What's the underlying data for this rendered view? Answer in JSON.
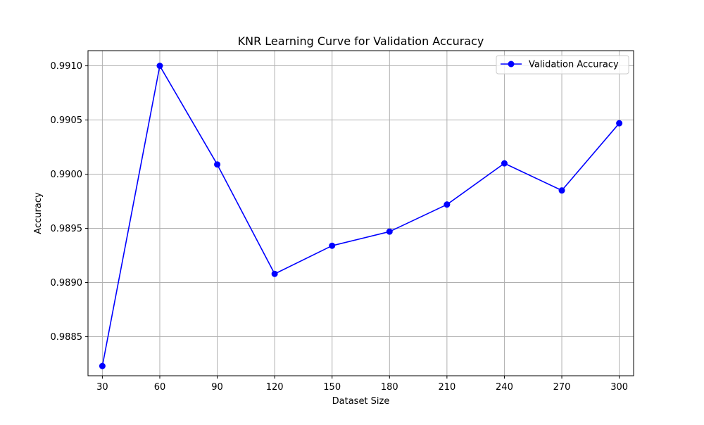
{
  "chart_data": {
    "type": "line",
    "title": "KNR Learning Curve for Validation Accuracy",
    "xlabel": "Dataset Size",
    "ylabel": "Accuracy",
    "x": [
      30,
      60,
      90,
      120,
      150,
      180,
      210,
      240,
      270,
      300
    ],
    "x_tick_labels": [
      "30",
      "60",
      "90",
      "120",
      "150",
      "180",
      "210",
      "240",
      "270",
      "300"
    ],
    "y_ticks": [
      0.9885,
      0.989,
      0.9895,
      0.99,
      0.9905,
      0.991
    ],
    "y_tick_labels": [
      "0.9885",
      "0.9890",
      "0.9895",
      "0.9900",
      "0.9905",
      "0.9910"
    ],
    "xlim": [
      22.5,
      307.5
    ],
    "ylim": [
      0.98814,
      0.99114
    ],
    "grid": true,
    "legend_position": "top-right",
    "series": [
      {
        "name": "Validation Accuracy",
        "color": "#0000ff",
        "marker": "circle",
        "values": [
          0.98823,
          0.991,
          0.99009,
          0.98908,
          0.98934,
          0.98947,
          0.98972,
          0.9901,
          0.98985,
          0.99047
        ]
      }
    ]
  }
}
